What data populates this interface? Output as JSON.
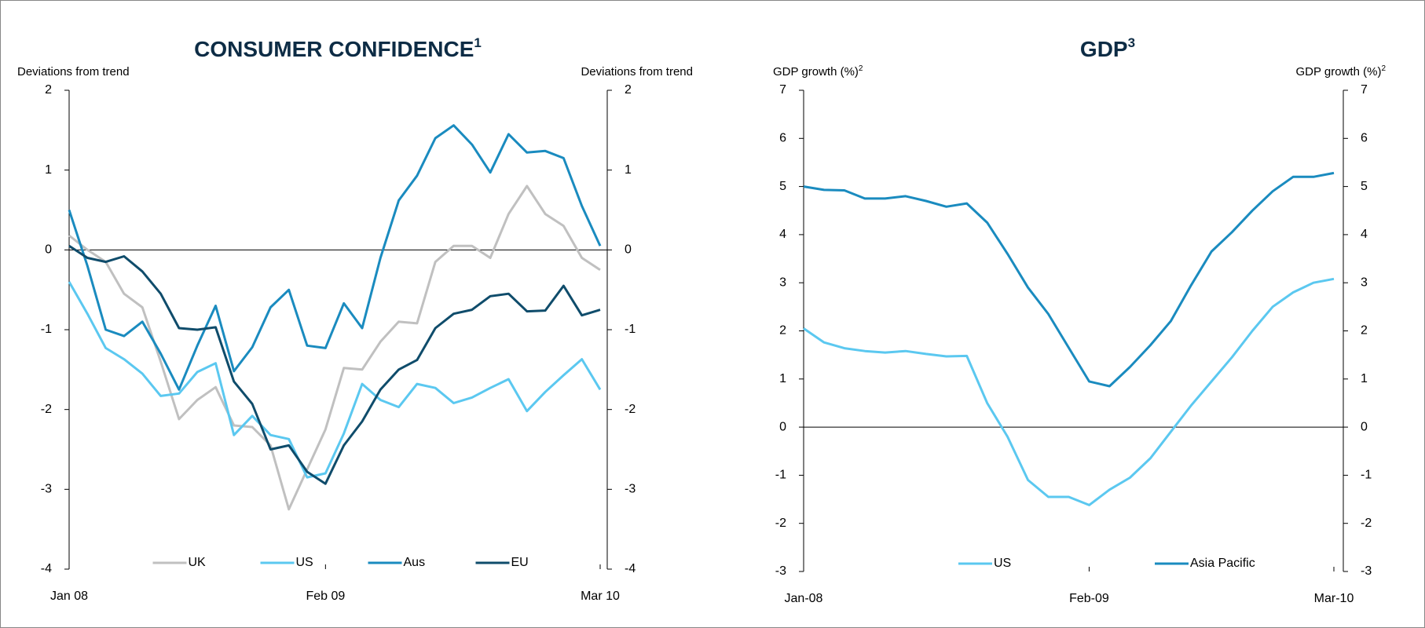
{
  "chart_data": [
    {
      "type": "line",
      "title": "CONSUMER CONFIDENCE",
      "title_sup": "1",
      "ylabel": "Deviations from trend",
      "y2label": "Deviations from trend",
      "categories": [
        "Jan 08",
        null,
        null,
        null,
        null,
        null,
        null,
        null,
        null,
        null,
        null,
        null,
        null,
        null,
        "Feb 09",
        null,
        null,
        null,
        null,
        null,
        null,
        null,
        null,
        null,
        null,
        null,
        null,
        null,
        null,
        "Mar 10"
      ],
      "ylim": [
        -4,
        2
      ],
      "yticks": [
        -4,
        -3,
        -2,
        -1,
        0,
        1,
        2
      ],
      "y2lim": [
        -4,
        2
      ],
      "y2ticks": [
        -4,
        -3,
        -2,
        -1,
        0,
        1,
        2
      ],
      "grid": false,
      "legend": "bottom",
      "series": [
        {
          "name": "UK",
          "color": "#c0c0c0",
          "values": [
            0.18,
            0.0,
            -0.15,
            -0.55,
            -0.72,
            -1.4,
            -2.12,
            -1.88,
            -1.72,
            -2.2,
            -2.22,
            -2.45,
            -3.25,
            -2.75,
            -2.25,
            -1.48,
            -1.5,
            -1.15,
            -0.9,
            -0.92,
            -0.15,
            0.05,
            0.05,
            -0.1,
            0.45,
            0.8,
            0.45,
            0.3,
            -0.1,
            -0.25
          ]
        },
        {
          "name": "US",
          "color": "#5bc8f0",
          "values": [
            -0.4,
            -0.8,
            -1.23,
            -1.37,
            -1.55,
            -1.83,
            -1.8,
            -1.53,
            -1.42,
            -2.32,
            -2.08,
            -2.32,
            -2.37,
            -2.85,
            -2.8,
            -2.3,
            -1.68,
            -1.88,
            -1.97,
            -1.68,
            -1.73,
            -1.92,
            -1.85,
            -1.73,
            -1.62,
            -2.02,
            -1.78,
            -1.57,
            -1.37,
            -1.75
          ]
        },
        {
          "name": "Aus",
          "color": "#1a8bbf",
          "values": [
            0.5,
            -0.2,
            -1.0,
            -1.08,
            -0.9,
            -1.3,
            -1.75,
            -1.2,
            -0.7,
            -1.52,
            -1.22,
            -0.72,
            -0.5,
            -1.2,
            -1.23,
            -0.67,
            -0.98,
            -0.1,
            0.62,
            0.93,
            1.4,
            1.56,
            1.32,
            0.97,
            1.45,
            1.22,
            1.24,
            1.15,
            0.55,
            0.05
          ]
        },
        {
          "name": "EU",
          "color": "#0f4c6b",
          "values": [
            0.05,
            -0.1,
            -0.15,
            -0.08,
            -0.27,
            -0.55,
            -0.98,
            -1.0,
            -0.97,
            -1.65,
            -1.93,
            -2.5,
            -2.45,
            -2.78,
            -2.93,
            -2.45,
            -2.15,
            -1.75,
            -1.5,
            -1.38,
            -0.98,
            -0.8,
            -0.75,
            -0.58,
            -0.55,
            -0.77,
            -0.76,
            -0.45,
            -0.82,
            -0.75
          ]
        }
      ]
    },
    {
      "type": "line",
      "title": "GDP",
      "title_sup": "3",
      "ylabel": "GDP growth (%)",
      "ylabel_sup": "2",
      "y2label": "GDP growth (%)",
      "y2label_sup": "2",
      "categories": [
        "Jan-08",
        null,
        null,
        null,
        null,
        null,
        null,
        null,
        null,
        null,
        null,
        null,
        null,
        null,
        "Feb-09",
        null,
        null,
        null,
        null,
        null,
        null,
        null,
        null,
        null,
        null,
        null,
        "Mar-10"
      ],
      "ylim": [
        -3,
        7
      ],
      "yticks": [
        -3,
        -2,
        -1,
        0,
        1,
        2,
        3,
        4,
        5,
        6,
        7
      ],
      "y2lim": [
        -3,
        7
      ],
      "y2ticks": [
        -3,
        -2,
        -1,
        0,
        1,
        2,
        3,
        4,
        5,
        6,
        7
      ],
      "grid": false,
      "legend": "bottom",
      "series": [
        {
          "name": "US",
          "color": "#5bc8f0",
          "values": [
            2.05,
            1.76,
            1.64,
            1.58,
            1.55,
            1.58,
            1.52,
            1.47,
            1.48,
            0.5,
            -0.2,
            -1.1,
            -1.45,
            -1.45,
            -1.62,
            -1.3,
            -1.05,
            -0.65,
            -0.1,
            0.45,
            0.95,
            1.45,
            2.0,
            2.5,
            2.8,
            3.0,
            3.08
          ]
        },
        {
          "name": "Asia Pacific",
          "color": "#1a8bbf",
          "values": [
            5.0,
            4.93,
            4.92,
            4.75,
            4.75,
            4.8,
            4.7,
            4.58,
            4.65,
            4.25,
            3.6,
            2.9,
            2.35,
            1.65,
            0.95,
            0.85,
            1.25,
            1.7,
            2.2,
            2.95,
            3.65,
            4.05,
            4.5,
            4.9,
            5.2,
            5.2,
            5.28
          ]
        }
      ]
    }
  ]
}
